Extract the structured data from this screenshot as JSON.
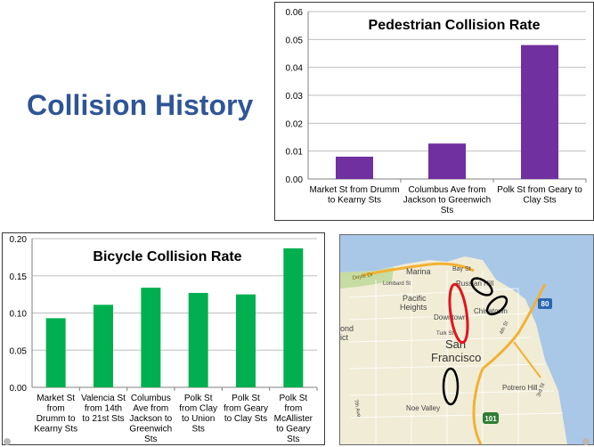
{
  "slide": {
    "title": "Collision History"
  },
  "chart_data": [
    {
      "id": "pedestrian",
      "type": "bar",
      "title": "Pedestrian Collision Rate",
      "categories": [
        [
          "Market St from Drumm",
          "to Kearny Sts"
        ],
        [
          "Columbus Ave from",
          "Jackson to Greenwich",
          "Sts"
        ],
        [
          "Polk St from Geary to",
          "Clay Sts"
        ]
      ],
      "values": [
        0.008,
        0.0127,
        0.048
      ],
      "ylim": [
        0,
        0.06
      ],
      "yticks": [
        "0.00",
        "0.01",
        "0.02",
        "0.03",
        "0.04",
        "0.05",
        "0.06"
      ],
      "bar_color": "#7030a0",
      "grid": true,
      "xlabel": "",
      "ylabel": ""
    },
    {
      "id": "bicycle",
      "type": "bar",
      "title": "Bicycle Collision Rate",
      "categories": [
        [
          "Market St",
          "from",
          "Drumm to",
          "Kearny Sts"
        ],
        [
          "Valencia St",
          "from 14th",
          "to 21st Sts"
        ],
        [
          "Columbus",
          "Ave from",
          "Jackson to",
          "Greenwich",
          "Sts"
        ],
        [
          "Polk St",
          "from Clay",
          "to Union",
          "Sts"
        ],
        [
          "Polk St",
          "from Geary",
          "to Clay Sts"
        ],
        [
          "Polk St",
          "from",
          "McAllister",
          "to Geary",
          "Sts"
        ]
      ],
      "values": [
        0.093,
        0.111,
        0.134,
        0.127,
        0.125,
        0.187
      ],
      "ylim": [
        0,
        0.2
      ],
      "yticks": [
        "0.00",
        "0.05",
        "0.10",
        "0.15",
        "0.20"
      ],
      "bar_color": "#00b050",
      "grid": true,
      "xlabel": "",
      "ylabel": ""
    }
  ],
  "map": {
    "labels": [
      "Marina",
      "Bay St",
      "Lombard St",
      "Russian Hill",
      "Pacific",
      "Heights",
      "Chinatown",
      "Downtown",
      "San",
      "Francisco",
      "Turk St",
      "4th St",
      "Potrero Hill",
      "Noe Valley",
      "Doyle Dr",
      "80",
      "101",
      "3rd St",
      "7th Ave",
      "ond",
      "ict"
    ],
    "colors": {
      "water": "#a9c8e8",
      "land": "#f0ecd6",
      "park": "#c6dca3",
      "highway": "#f2b134",
      "red_ellipse": "#e3141b",
      "black_ellipse": "#000000"
    }
  }
}
